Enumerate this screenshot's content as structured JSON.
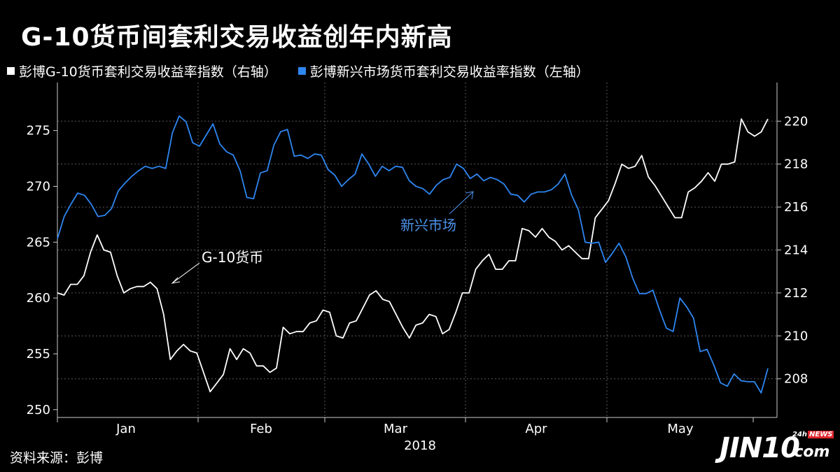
{
  "chart_data": {
    "type": "line",
    "title": "G-10货币间套利交易收益创年内新高",
    "xlabel": "2018",
    "x_ticks": [
      "Jan",
      "Feb",
      "Mar",
      "Apr",
      "May"
    ],
    "left_axis": {
      "ticks": [
        250,
        255,
        260,
        265,
        270,
        275
      ],
      "ylim": [
        249.3,
        279.3
      ]
    },
    "right_axis": {
      "ticks": [
        208,
        210,
        212,
        214,
        216,
        218,
        220
      ],
      "ylim": [
        206.2,
        221.8
      ]
    },
    "series": [
      {
        "name": "彭博G-10货币套利交易收益率指数（右轴）",
        "axis": "right",
        "color": "#ffffff",
        "values": [
          212.0,
          211.9,
          212.4,
          212.4,
          212.8,
          213.9,
          214.7,
          214.0,
          213.9,
          212.8,
          212.0,
          212.2,
          212.3,
          212.3,
          212.5,
          212.2,
          211.0,
          208.9,
          209.3,
          209.6,
          209.3,
          209.2,
          208.3,
          207.4,
          207.8,
          208.2,
          209.4,
          208.9,
          209.4,
          209.2,
          208.6,
          208.6,
          208.3,
          208.5,
          210.4,
          210.1,
          210.2,
          210.2,
          210.6,
          210.7,
          211.2,
          211.1,
          210.0,
          209.9,
          210.6,
          210.7,
          211.3,
          211.9,
          212.1,
          211.7,
          211.6,
          211.0,
          210.4,
          209.9,
          210.5,
          210.6,
          211.0,
          210.9,
          210.1,
          210.3,
          211.1,
          212.0,
          212.0,
          213.1,
          213.5,
          213.8,
          213.1,
          213.1,
          213.5,
          213.5,
          215.0,
          214.9,
          214.6,
          215.0,
          214.6,
          214.4,
          214.0,
          214.2,
          213.9,
          213.6,
          213.6,
          215.5,
          215.9,
          216.3,
          217.1,
          218.0,
          217.8,
          217.9,
          218.4,
          217.4,
          217.0,
          216.5,
          216.0,
          215.5,
          215.5,
          216.7,
          216.9,
          217.2,
          217.6,
          217.2,
          218.0,
          218.0,
          218.1,
          220.1,
          219.5,
          219.3,
          219.5,
          220.1
        ]
      },
      {
        "name": "彭博新兴市场货币套利交易收益率指数（左轴）",
        "axis": "left",
        "color": "#2e86f0",
        "values": [
          265.3,
          267.3,
          268.4,
          269.4,
          269.2,
          268.4,
          267.3,
          267.4,
          268.0,
          269.6,
          270.3,
          270.9,
          271.4,
          271.8,
          271.6,
          271.8,
          271.6,
          274.8,
          276.3,
          275.8,
          273.9,
          273.6,
          274.6,
          275.6,
          273.8,
          273.1,
          272.8,
          271.4,
          269.0,
          268.9,
          271.2,
          271.4,
          273.7,
          274.9,
          275.1,
          272.7,
          272.8,
          272.5,
          272.9,
          272.8,
          271.5,
          271.0,
          270.0,
          270.6,
          271.1,
          272.9,
          272.0,
          270.9,
          271.8,
          271.4,
          271.8,
          271.7,
          270.5,
          270.0,
          269.8,
          269.3,
          270.1,
          270.6,
          270.8,
          272.0,
          271.6,
          270.7,
          271.1,
          270.5,
          270.8,
          270.6,
          270.2,
          269.3,
          269.2,
          268.6,
          269.3,
          269.5,
          269.5,
          269.7,
          270.2,
          271.1,
          269.2,
          267.9,
          265.0,
          264.9,
          265.0,
          263.2,
          264.0,
          264.9,
          263.7,
          261.8,
          260.4,
          260.4,
          260.7,
          258.9,
          257.3,
          257.0,
          260.0,
          259.2,
          258.2,
          255.2,
          255.4,
          254.0,
          252.4,
          252.1,
          253.2,
          252.6,
          252.5,
          252.5,
          251.5,
          253.7
        ]
      }
    ],
    "annotations": [
      {
        "text": "G-10货币",
        "series": "G-10"
      },
      {
        "text": "新兴市场",
        "series": "EM"
      }
    ],
    "grid": true
  },
  "source": "资料来源：彭博",
  "logo": {
    "main": "JIN10",
    "domain": ".com",
    "tag": "24h",
    "tag_badge": "NEWS"
  }
}
